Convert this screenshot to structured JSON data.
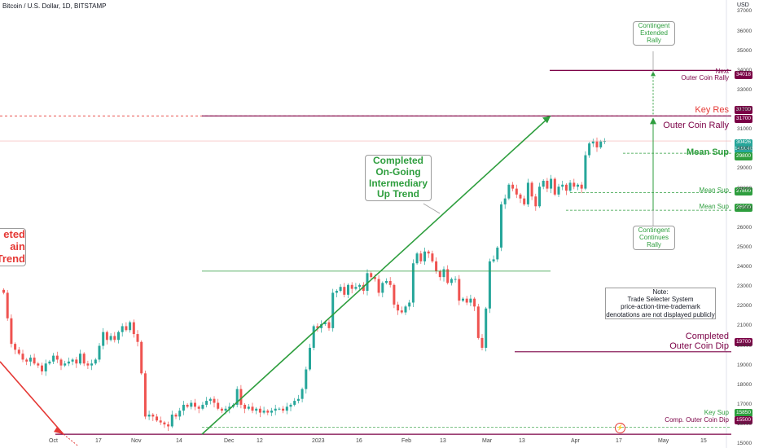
{
  "header": {
    "symbol": "Bitcoin / U.S. Dollar, 1D, BITSTAMP",
    "currency": "USD"
  },
  "colors": {
    "green": "#2e9e3e",
    "red": "#e53935",
    "maroon": "#7b0046",
    "up": "#26a69a",
    "down": "#ef5350"
  },
  "chart_data": {
    "type": "candlestick",
    "x_tick_labels": [
      "Oct",
      "17",
      "Nov",
      "14",
      "Dec",
      "12",
      "2023",
      "16",
      "Feb",
      "13",
      "Mar",
      "13",
      "Apr",
      "17",
      "May",
      "15"
    ],
    "y_tick_labels": [
      "37000",
      "36000",
      "35000",
      "34000",
      "33000",
      "32000",
      "31000",
      "30000",
      "29000",
      "28000",
      "27000",
      "26000",
      "25000",
      "24000",
      "23000",
      "22000",
      "21000",
      "20000",
      "19000",
      "18000",
      "17000",
      "16000",
      "15000"
    ],
    "ylim": [
      14800,
      37600
    ],
    "closes": [
      22700,
      21400,
      20100,
      19800,
      19600,
      19300,
      19200,
      19400,
      19100,
      19000,
      18700,
      19100,
      19200,
      19500,
      19300,
      19000,
      19100,
      19200,
      19300,
      19100,
      19600,
      19100,
      19000,
      19100,
      19300,
      20000,
      20700,
      20300,
      20500,
      20300,
      20700,
      21000,
      20800,
      21200,
      20600,
      20200,
      18600,
      16400,
      16500,
      16400,
      16200,
      16100,
      16000,
      15900,
      16500,
      16400,
      16700,
      17000,
      16900,
      17100,
      16900,
      16800,
      17000,
      17200,
      17300,
      17100,
      16800,
      16700,
      16800,
      16900,
      17000,
      17800,
      17000,
      16800,
      16900,
      16700,
      16800,
      16600,
      16700,
      16600,
      16700,
      16800,
      16800,
      16700,
      16900,
      17000,
      17200,
      17300,
      17800,
      18800,
      19900,
      21000,
      20900,
      21100,
      21200,
      20900,
      22700,
      22800,
      23000,
      22600,
      23100,
      22900,
      23000,
      23100,
      22800,
      23700,
      23500,
      23400,
      22700,
      23200,
      23300,
      23100,
      22100,
      21800,
      21700,
      22000,
      22200,
      24200,
      24700,
      24300,
      24800,
      24700,
      24300,
      23800,
      23500,
      23900,
      23200,
      23400,
      23400,
      22300,
      22400,
      22200,
      22400,
      22000,
      20400,
      19900,
      21900,
      24300,
      24400,
      25000,
      27200,
      27500,
      28200,
      28000,
      27700,
      27500,
      27200,
      28300,
      27600,
      27100,
      28100,
      28400,
      28000,
      28500,
      27700,
      28100,
      28200,
      27900,
      28300,
      28100,
      28200,
      28000,
      29700,
      30300,
      30400,
      30100,
      30400,
      30426
    ],
    "levels": [
      {
        "name": "Next Outer Coin Rally",
        "value": 34018
      },
      {
        "name": "Key Res / Outer Coin Rally",
        "value": 31700
      },
      {
        "name": "Mean Sup",
        "value": 29800
      },
      {
        "name": "Mean Sup",
        "value": 27800
      },
      {
        "name": "Mean Sup",
        "value": 26900
      },
      {
        "name": "Completed Outer Coin Dip",
        "value": 19700
      },
      {
        "name": "Key Sup",
        "value": 15850
      },
      {
        "name": "Comp. Outer Coin Dip",
        "value": 15500
      }
    ],
    "last_price": 30426,
    "countdown": "14:51:42"
  },
  "annotations": {
    "left_fragment": "eted\nain\nTrend",
    "completed_trend": "Completed\nOn-Going\nIntermediary\nUp Trend",
    "contingent_extended": "Contingent\nExtended\nRally",
    "contingent_continues": "Contingent\nContinues\nRally",
    "note": "Note:\nTrade Selecter System\nprice-action-time-trademark\ndenotations are not displayed publicly",
    "next_outer": "Next\nOuter Coin Rally",
    "key_res": "Key Res",
    "outer_coin_rally": "Outer Coin Rally",
    "mean_sup_1": "Mean Sup",
    "mean_sup_2": "Mean Sup",
    "mean_sup_3": "Mean Sup",
    "completed_dip": "Completed\nOuter Coin Dip",
    "key_sup": "Key Sup",
    "comp_dip": "Comp. Outer Coin Dip"
  },
  "pills": {
    "p34018": "34018",
    "p31700a": "31700",
    "p31700b": "31700",
    "p30426": "30426",
    "p29800": "29800",
    "p27800": "27800",
    "p26900": "26900",
    "p19700": "19700",
    "p15850": "15850",
    "p15500": "15500"
  }
}
